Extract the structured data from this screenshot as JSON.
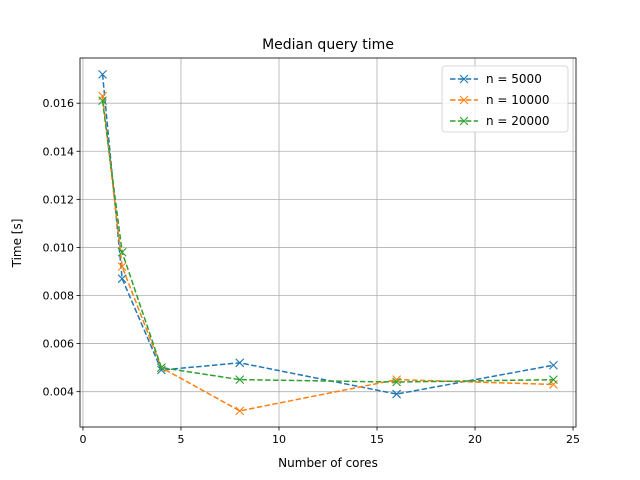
{
  "chart_data": {
    "type": "line",
    "title": "Median query time",
    "xlabel": "Number of cores",
    "ylabel": "Time [s]",
    "xlim": [
      -0.15,
      25.15
    ],
    "ylim": [
      0.00253,
      0.01788
    ],
    "xticks": [
      0,
      5,
      10,
      15,
      20,
      25
    ],
    "xtick_labels": [
      "0",
      "5",
      "10",
      "15",
      "20",
      "25"
    ],
    "yticks": [
      0.004,
      0.006,
      0.008,
      0.01,
      0.012,
      0.014,
      0.016
    ],
    "ytick_labels": [
      "0.004",
      "0.006",
      "0.008",
      "0.010",
      "0.012",
      "0.014",
      "0.016"
    ],
    "grid": true,
    "legend_position": "top-right",
    "x": [
      1,
      2,
      4,
      8,
      16,
      24
    ],
    "series": [
      {
        "name": "n = 5000",
        "color": "#1f77b4",
        "values": [
          0.0172,
          0.0087,
          0.0049,
          0.0052,
          0.0039,
          0.0051
        ]
      },
      {
        "name": "n = 10000",
        "color": "#ff7f0e",
        "values": [
          0.0163,
          0.0092,
          0.005,
          0.0032,
          0.0045,
          0.0043
        ]
      },
      {
        "name": "n = 20000",
        "color": "#2ca02c",
        "values": [
          0.0161,
          0.0098,
          0.005,
          0.0045,
          0.0044,
          0.0045
        ]
      }
    ]
  }
}
